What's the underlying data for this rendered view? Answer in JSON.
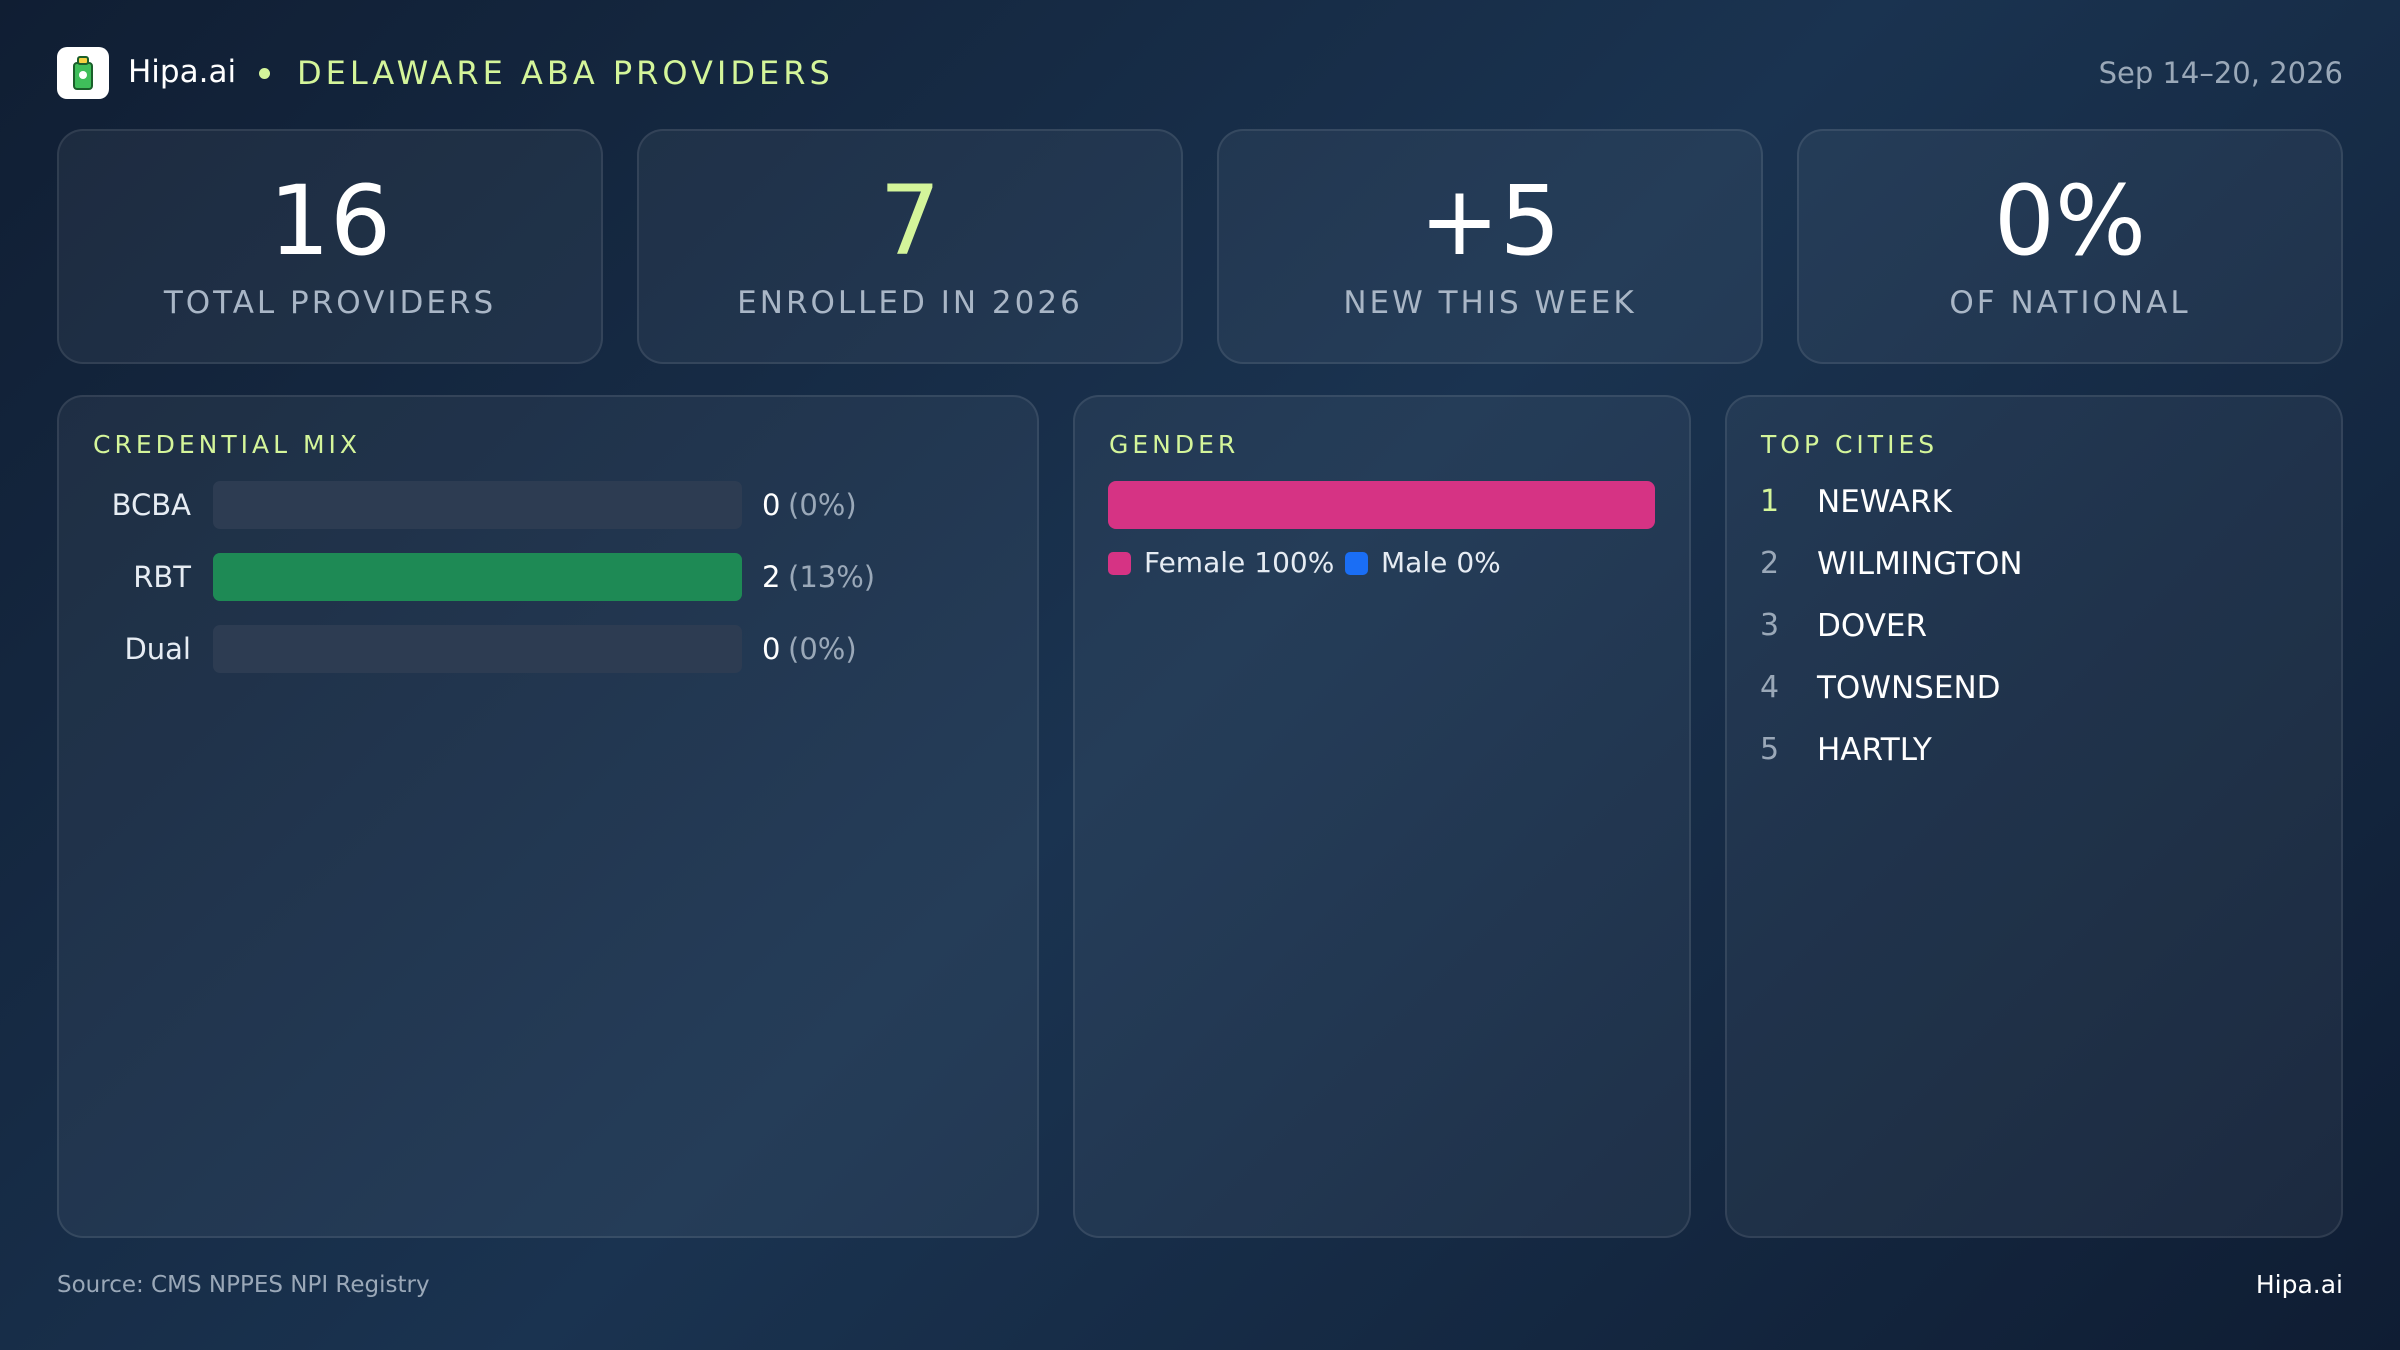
{
  "header": {
    "brand": "Hipa.ai",
    "title": "DELAWARE ABA PROVIDERS",
    "date": "Sep 14–20, 2026"
  },
  "kpis": [
    {
      "value": "16",
      "label": "TOTAL PROVIDERS",
      "color": "#ffffff"
    },
    {
      "value": "7",
      "label": "ENROLLED IN 2026",
      "color": "#d4f59a"
    },
    {
      "value": "+5",
      "label": "NEW THIS WEEK",
      "color": "#ffffff"
    },
    {
      "value": "0%",
      "label": "OF NATIONAL",
      "color": "#ffffff"
    }
  ],
  "credential_mix": {
    "title": "CREDENTIAL MIX",
    "color": "#1e8a55",
    "rows": [
      {
        "label": "BCBA",
        "count": 0,
        "share_label": "(0%)"
      },
      {
        "label": "RBT",
        "count": 2,
        "share_label": "(13%)"
      },
      {
        "label": "Dual",
        "count": 0,
        "share_label": "(0%)"
      }
    ]
  },
  "gender": {
    "title": "GENDER",
    "segments": [
      {
        "name": "Female",
        "value": 100,
        "value_label": "100%",
        "color": "#d63384"
      },
      {
        "name": "Male",
        "value": 0,
        "value_label": "0%",
        "color": "#1a6ef5"
      }
    ]
  },
  "top_cities": {
    "title": "TOP CITIES",
    "items": [
      {
        "rank": 1,
        "name": "NEWARK"
      },
      {
        "rank": 2,
        "name": "WILMINGTON"
      },
      {
        "rank": 3,
        "name": "DOVER"
      },
      {
        "rank": 4,
        "name": "TOWNSEND"
      },
      {
        "rank": 5,
        "name": "HARTLY"
      }
    ]
  },
  "footer": {
    "source": "Source: CMS NPPES NPI Registry",
    "brand": "Hipa.ai"
  }
}
